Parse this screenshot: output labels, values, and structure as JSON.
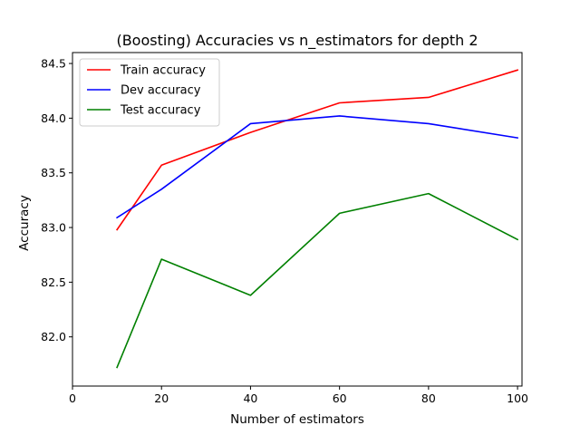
{
  "chart_data": {
    "type": "line",
    "title": "(Boosting) Accuracies vs n_estimators for depth 2",
    "xlabel": "Number of estimators",
    "ylabel": "Accuracy",
    "xlim": [
      0,
      101
    ],
    "ylim": [
      81.55,
      84.6
    ],
    "xticks": [
      0,
      20,
      40,
      60,
      80,
      100
    ],
    "yticks": [
      82.0,
      82.5,
      83.0,
      83.5,
      84.0,
      84.5
    ],
    "grid": false,
    "legend_position": "top-left",
    "x": [
      10,
      20,
      40,
      60,
      80,
      100
    ],
    "series": [
      {
        "name": "Train accuracy",
        "color": "#ff0000",
        "values": [
          82.98,
          83.57,
          83.87,
          84.14,
          84.19,
          84.44
        ]
      },
      {
        "name": "Dev accuracy",
        "color": "#0000ff",
        "values": [
          83.09,
          83.35,
          83.95,
          84.02,
          83.95,
          83.82
        ]
      },
      {
        "name": "Test accuracy",
        "color": "#008000",
        "values": [
          81.72,
          82.71,
          82.38,
          83.13,
          83.31,
          82.89
        ]
      }
    ]
  }
}
